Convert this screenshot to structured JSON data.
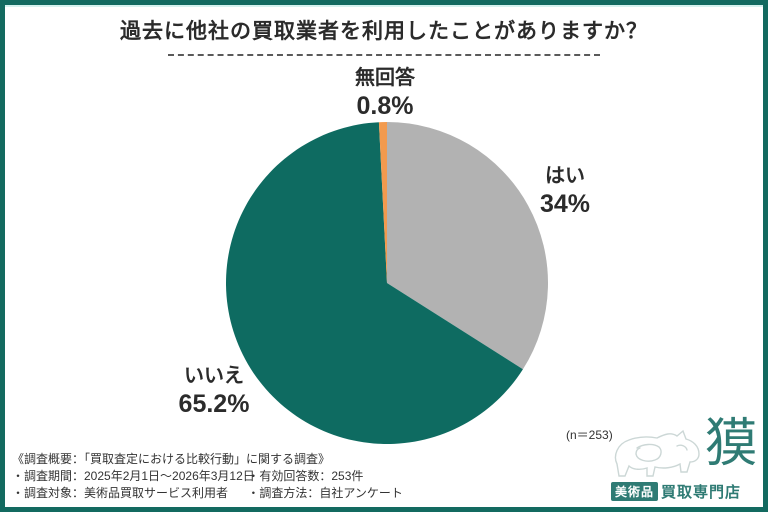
{
  "chart_data": {
    "type": "pie",
    "title": "過去に他社の買取業者を利用したことがありますか？",
    "start_angle_deg": 0,
    "direction": "clockwise",
    "slices": [
      {
        "label": "はい",
        "value": 34,
        "display": "34%",
        "color": "#b2b2b2"
      },
      {
        "label": "いいえ",
        "value": 65.2,
        "display": "65.2%",
        "color": "#0e6b61"
      },
      {
        "label": "無回答",
        "value": 0.8,
        "display": "0.8%",
        "color": "#f29a4e"
      }
    ],
    "sample_note": "(n＝253)",
    "legend_position": "around-pie",
    "grid": false
  },
  "footer": {
    "heading": "《調査概要：「買取査定における比較行動」に関する調査》",
    "row1_col1": "・調査期間：2025年2月1日～2026年3月12日",
    "row1_col2": "・有効回答数：253件",
    "row2_col1": "・調査対象：美術品買取サービス利用者",
    "row2_col2": "・調査方法：自社アンケート"
  },
  "logo": {
    "kanji": "獏",
    "badge_text": "美術品",
    "store_text": "買取専門店"
  },
  "colors": {
    "frame_border": "#136a60",
    "pie_yes": "#b2b2b2",
    "pie_no": "#0e6b61",
    "pie_noanswer": "#f29a4e",
    "logo_teal": "#2f7b74",
    "text": "#2b2b2b"
  }
}
